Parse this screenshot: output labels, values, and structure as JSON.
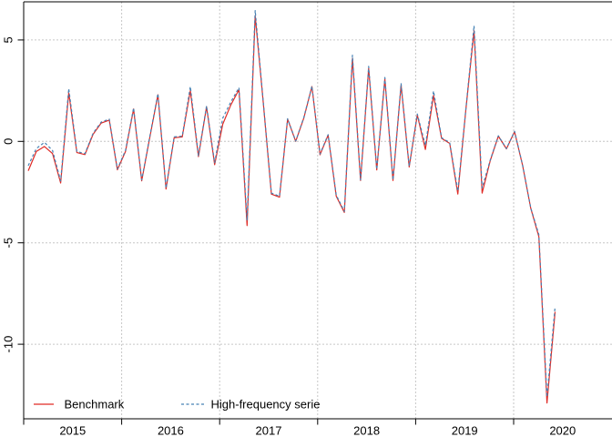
{
  "chart_data": {
    "type": "line",
    "title": "",
    "frequency": "monthly",
    "start": "2015-01",
    "end": "2020-06",
    "grid": true,
    "legend_position": "bottom-left",
    "x_axis": {
      "tick_years": [
        "2015",
        "2016",
        "2017",
        "2018",
        "2019",
        "2020"
      ]
    },
    "y_axis": {
      "ticks": [
        5,
        0,
        -5,
        -10
      ],
      "range": [
        -13.7,
        6.9
      ]
    },
    "series": [
      {
        "name": "Benchmark",
        "color": "#e02a25",
        "style": "solid",
        "values": [
          -1.45,
          -0.5,
          -0.25,
          -0.6,
          -2.05,
          2.4,
          -0.55,
          -0.65,
          0.35,
          0.9,
          1.05,
          -1.4,
          -0.5,
          1.6,
          -1.95,
          0.2,
          2.3,
          -2.35,
          0.18,
          0.22,
          2.5,
          -0.75,
          1.7,
          -1.15,
          0.85,
          1.8,
          2.55,
          -4.15,
          6.2,
          1.9,
          -2.6,
          -2.75,
          1.1,
          0.0,
          1.15,
          2.7,
          -0.66,
          0.31,
          -2.7,
          -3.5,
          4.1,
          -1.93,
          3.6,
          -1.41,
          3.08,
          -1.93,
          2.78,
          -1.26,
          1.3,
          -0.4,
          2.26,
          0.15,
          -0.1,
          -2.6,
          1.6,
          5.45,
          -2.55,
          -0.95,
          0.26,
          -0.37,
          0.48,
          -1.2,
          -3.3,
          -4.7,
          -12.9,
          -8.4
        ]
      },
      {
        "name": "High-frequency serie",
        "color": "#4682b4",
        "style": "dashed",
        "values": [
          -1.2,
          -0.35,
          -0.05,
          -0.45,
          -1.95,
          2.6,
          -0.5,
          -0.6,
          0.4,
          0.95,
          1.1,
          -1.35,
          -0.45,
          1.65,
          -1.9,
          0.25,
          2.35,
          -2.3,
          0.22,
          0.26,
          2.7,
          -0.7,
          1.75,
          -1.05,
          1.15,
          1.95,
          2.65,
          -3.9,
          6.45,
          1.95,
          -2.55,
          -2.7,
          1.12,
          0.02,
          1.18,
          2.72,
          -0.62,
          0.33,
          -2.65,
          -3.45,
          4.25,
          -1.9,
          3.7,
          -1.38,
          3.15,
          -1.9,
          2.85,
          -1.22,
          1.35,
          -0.2,
          2.48,
          0.18,
          -0.06,
          -2.45,
          1.62,
          5.7,
          -2.3,
          -0.92,
          0.28,
          -0.35,
          0.5,
          -1.18,
          -3.28,
          -4.6,
          -12.6,
          -8.15
        ]
      }
    ]
  },
  "colors": {
    "benchmark": "#e02a25",
    "high_frequency": "#4682b4",
    "grid": "#c6c6c6",
    "axis": "#000000",
    "background": "#ffffff"
  }
}
